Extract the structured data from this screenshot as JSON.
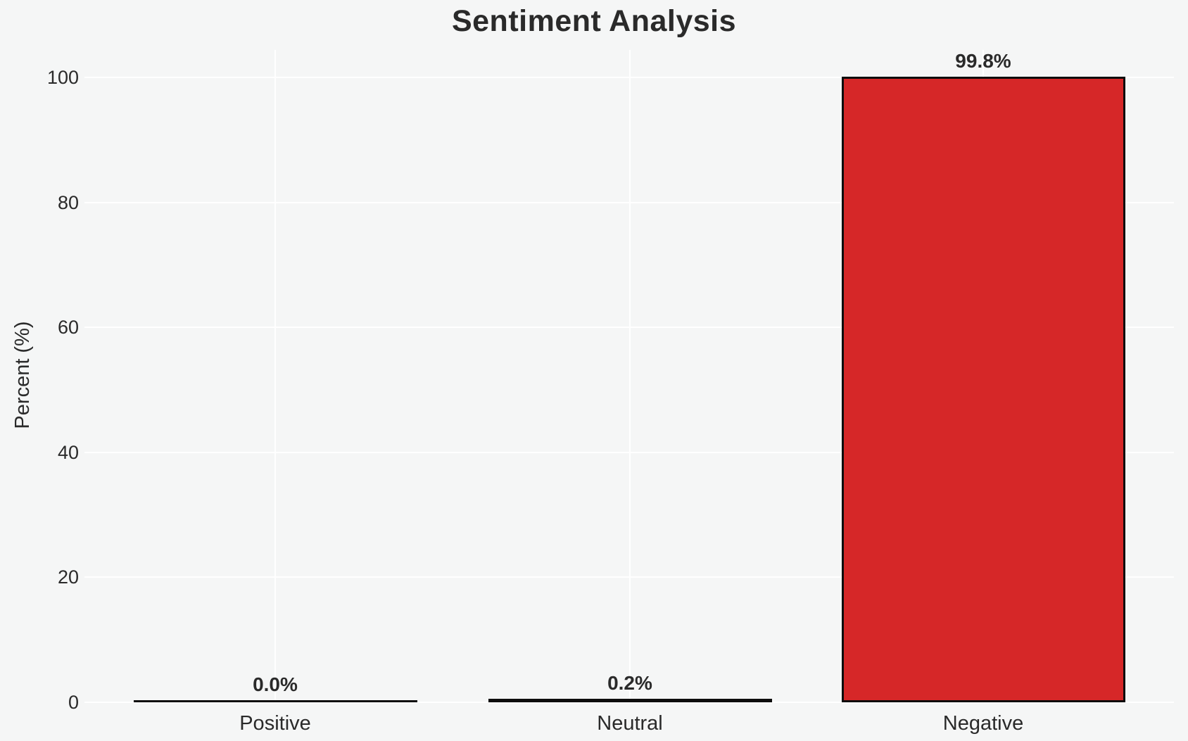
{
  "chart_data": {
    "type": "bar",
    "title": "Sentiment Analysis",
    "ylabel": "Percent (%)",
    "xlabel": "",
    "categories": [
      "Positive",
      "Neutral",
      "Negative"
    ],
    "values": [
      0.0,
      0.2,
      99.8
    ],
    "bar_labels": [
      "0.0%",
      "0.2%",
      "99.8%"
    ],
    "bar_fill_colors": [
      null,
      null,
      "#d62728"
    ],
    "bar_edge_color": "#0d0d0d",
    "yticks": [
      0,
      20,
      40,
      60,
      80,
      100
    ],
    "ylim": [
      0,
      105
    ],
    "grid": {
      "horizontal": true,
      "vertical": true,
      "color": "#ffffff"
    },
    "legend": "none",
    "background_color": "#f5f6f6",
    "text_color": "#2a2a2a"
  }
}
